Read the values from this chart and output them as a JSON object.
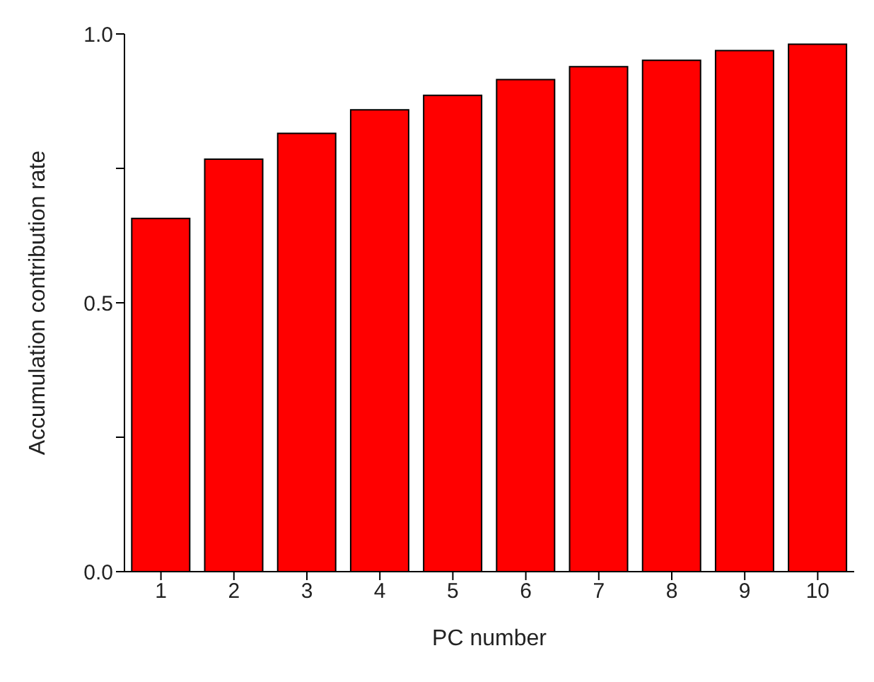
{
  "chart_data": {
    "type": "bar",
    "xlabel": "PC number",
    "ylabel": "Accumulation contribution rate",
    "categories": [
      "1",
      "2",
      "3",
      "4",
      "5",
      "6",
      "7",
      "8",
      "9",
      "10"
    ],
    "values": [
      0.657,
      0.767,
      0.815,
      0.859,
      0.886,
      0.915,
      0.939,
      0.951,
      0.969,
      0.981
    ],
    "color": "#ff0000",
    "ylim": [
      0,
      1
    ],
    "yticks": [
      {
        "value": 0,
        "label": "0.0"
      },
      {
        "value": 0.25,
        "label": null
      },
      {
        "value": 0.5,
        "label": "0.5"
      },
      {
        "value": 0.75,
        "label": null
      },
      {
        "value": 1,
        "label": "1.0"
      }
    ],
    "grid": false
  }
}
